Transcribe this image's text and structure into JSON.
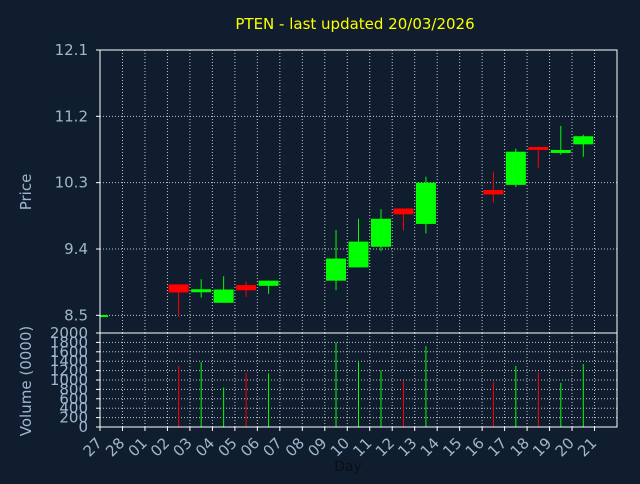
{
  "chart_data": {
    "type": "candlestick",
    "title": "PTEN - last updated 20/03/2026",
    "xlabel": "Day",
    "x_ticks": [
      "27",
      "28",
      "01",
      "02",
      "03",
      "04",
      "05",
      "06",
      "07",
      "08",
      "09",
      "10",
      "11",
      "12",
      "13",
      "14",
      "15",
      "16",
      "17",
      "18",
      "19",
      "20",
      "21"
    ],
    "price_panel": {
      "ylabel": "Price",
      "ylim": [
        8.26,
        12.1
      ],
      "y_ticks": [
        "8.5",
        "9.4",
        "10.3",
        "11.2",
        "12.1"
      ],
      "grid": true
    },
    "volume_panel": {
      "ylabel": "Volume (0000)",
      "ylim": [
        0,
        2000
      ],
      "y_ticks": [
        "0",
        "200",
        "400",
        "600",
        "800",
        "1000",
        "1200",
        "1400",
        "1600",
        "1800",
        "2000"
      ],
      "grid": true
    },
    "candles": [
      {
        "day": "27",
        "open": 8.49,
        "close": 8.49,
        "high": 8.49,
        "low": 8.49,
        "volume": 0
      },
      {
        "day": "02",
        "open": 8.92,
        "close": 8.81,
        "high": 8.92,
        "low": 8.48,
        "volume": 1300
      },
      {
        "day": "03",
        "open": 8.8,
        "close": 8.84,
        "high": 8.99,
        "low": 8.74,
        "volume": 1380
      },
      {
        "day": "04",
        "open": 8.67,
        "close": 8.85,
        "high": 9.03,
        "low": 8.67,
        "volume": 840
      },
      {
        "day": "05",
        "open": 8.91,
        "close": 8.84,
        "high": 8.96,
        "low": 8.75,
        "volume": 1160
      },
      {
        "day": "06",
        "open": 8.9,
        "close": 8.97,
        "high": 8.97,
        "low": 8.79,
        "volume": 1140
      },
      {
        "day": "09",
        "open": 8.97,
        "close": 9.27,
        "high": 9.66,
        "low": 8.84,
        "volume": 1800
      },
      {
        "day": "10",
        "open": 9.15,
        "close": 9.5,
        "high": 9.81,
        "low": 9.15,
        "volume": 1380
      },
      {
        "day": "11",
        "open": 9.43,
        "close": 9.81,
        "high": 9.94,
        "low": 9.37,
        "volume": 1200
      },
      {
        "day": "12",
        "open": 9.95,
        "close": 9.87,
        "high": 9.95,
        "low": 9.65,
        "volume": 980
      },
      {
        "day": "13",
        "open": 9.74,
        "close": 10.3,
        "high": 10.38,
        "low": 9.61,
        "volume": 1720
      },
      {
        "day": "16",
        "open": 10.2,
        "close": 10.14,
        "high": 10.45,
        "low": 10.03,
        "volume": 960
      },
      {
        "day": "17",
        "open": 10.27,
        "close": 10.72,
        "high": 10.76,
        "low": 10.24,
        "volume": 1300
      },
      {
        "day": "18",
        "open": 10.77,
        "close": 10.73,
        "high": 10.79,
        "low": 10.5,
        "volume": 1160
      },
      {
        "day": "19",
        "open": 10.71,
        "close": 10.73,
        "high": 11.07,
        "low": 10.68,
        "volume": 940
      },
      {
        "day": "20",
        "open": 10.82,
        "close": 10.93,
        "high": 10.95,
        "low": 10.65,
        "volume": 1340
      }
    ],
    "colors": {
      "background": "#0f1d2e",
      "axis": "#ffffff",
      "grid": "#ffffff",
      "text": "#9fb7ce",
      "title": "#ffff00",
      "up": "#00ff00",
      "down": "#ff0000"
    }
  }
}
